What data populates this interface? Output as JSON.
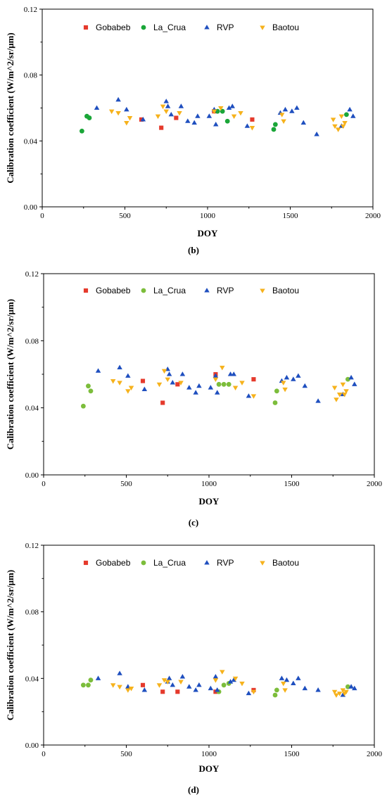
{
  "colors": {
    "Gobabeb": "#e53a2c",
    "La_Crua": "#1aa638",
    "La_Crua_light": "#7cbd3b",
    "RVP": "#1f4fbf",
    "Baotou": "#f6b21c"
  },
  "chart_data": [
    {
      "type": "scatter",
      "panel_label": "(b)",
      "xlabel": "DOY",
      "ylabel": "Calibration coefficient (W/m^2/sr/μm)",
      "xlim": [
        0,
        2000
      ],
      "ylim": [
        0,
        0.12
      ],
      "xticks": [
        "0",
        "500",
        "1000",
        "1500",
        "2000"
      ],
      "yticks": [
        "0.00",
        "0.04",
        "0.08",
        "0.12"
      ],
      "grid": false,
      "legend_position": "top",
      "series": [
        {
          "name": "Gobabeb",
          "marker": "square",
          "color_key": "Gobabeb",
          "x": [
            600,
            720,
            810,
            1040,
            1270
          ],
          "y": [
            0.053,
            0.048,
            0.054,
            0.058,
            0.053
          ]
        },
        {
          "name": "La_Crua",
          "marker": "circle",
          "color_key": "La_Crua",
          "x": [
            240,
            270,
            285,
            1060,
            1090,
            1120,
            1400,
            1410,
            1840
          ],
          "y": [
            0.046,
            0.055,
            0.054,
            0.058,
            0.058,
            0.052,
            0.047,
            0.05,
            0.056
          ]
        },
        {
          "name": "RVP",
          "marker": "triangle-up",
          "color_key": "RVP",
          "x": [
            330,
            460,
            510,
            610,
            750,
            760,
            780,
            840,
            880,
            920,
            940,
            1010,
            1040,
            1050,
            1130,
            1150,
            1240,
            1440,
            1470,
            1510,
            1540,
            1580,
            1660,
            1810,
            1860,
            1880
          ],
          "y": [
            0.06,
            0.065,
            0.059,
            0.053,
            0.064,
            0.061,
            0.056,
            0.061,
            0.052,
            0.051,
            0.055,
            0.055,
            0.059,
            0.05,
            0.06,
            0.061,
            0.049,
            0.057,
            0.059,
            0.058,
            0.06,
            0.051,
            0.044,
            0.049,
            0.059,
            0.055
          ]
        },
        {
          "name": "Baotou",
          "marker": "triangle-down",
          "color_key": "Baotou",
          "x": [
            420,
            460,
            510,
            530,
            700,
            730,
            750,
            830,
            1040,
            1080,
            1160,
            1200,
            1270,
            1450,
            1460,
            1760,
            1770,
            1790,
            1810,
            1820,
            1830
          ],
          "y": [
            0.058,
            0.057,
            0.051,
            0.054,
            0.055,
            0.061,
            0.058,
            0.057,
            0.058,
            0.06,
            0.055,
            0.057,
            0.048,
            0.056,
            0.052,
            0.053,
            0.049,
            0.047,
            0.055,
            0.049,
            0.051
          ]
        }
      ]
    },
    {
      "type": "scatter",
      "panel_label": "(c)",
      "xlabel": "DOY",
      "ylabel": "Calibration coefficient (W/m^2/sr/μm)",
      "xlim": [
        0,
        2000
      ],
      "ylim": [
        0,
        0.12
      ],
      "xticks": [
        "0",
        "500",
        "1000",
        "1500",
        "2000"
      ],
      "yticks": [
        "0.00",
        "0.04",
        "0.08",
        "0.12"
      ],
      "grid": false,
      "legend_position": "top",
      "series": [
        {
          "name": "Gobabeb",
          "marker": "square",
          "color_key": "Gobabeb",
          "x": [
            600,
            720,
            810,
            1040,
            1270
          ],
          "y": [
            0.056,
            0.043,
            0.054,
            0.06,
            0.057
          ]
        },
        {
          "name": "La_Crua",
          "marker": "circle",
          "color_key": "La_Crua_light",
          "x": [
            240,
            270,
            285,
            1060,
            1090,
            1120,
            1400,
            1410,
            1840
          ],
          "y": [
            0.041,
            0.053,
            0.05,
            0.054,
            0.054,
            0.054,
            0.043,
            0.05,
            0.057
          ]
        },
        {
          "name": "RVP",
          "marker": "triangle-up",
          "color_key": "RVP",
          "x": [
            330,
            460,
            510,
            610,
            750,
            760,
            780,
            840,
            880,
            920,
            940,
            1010,
            1040,
            1050,
            1130,
            1150,
            1240,
            1440,
            1470,
            1510,
            1540,
            1580,
            1660,
            1810,
            1860,
            1880
          ],
          "y": [
            0.062,
            0.064,
            0.059,
            0.051,
            0.063,
            0.06,
            0.055,
            0.06,
            0.052,
            0.049,
            0.053,
            0.052,
            0.059,
            0.049,
            0.06,
            0.06,
            0.047,
            0.056,
            0.058,
            0.057,
            0.059,
            0.053,
            0.044,
            0.048,
            0.058,
            0.054
          ]
        },
        {
          "name": "Baotou",
          "marker": "triangle-down",
          "color_key": "Baotou",
          "x": [
            420,
            460,
            510,
            530,
            700,
            730,
            750,
            830,
            1040,
            1080,
            1160,
            1200,
            1270,
            1450,
            1460,
            1760,
            1770,
            1790,
            1810,
            1820,
            1830
          ],
          "y": [
            0.056,
            0.055,
            0.05,
            0.052,
            0.054,
            0.062,
            0.057,
            0.055,
            0.057,
            0.064,
            0.052,
            0.055,
            0.047,
            0.055,
            0.051,
            0.052,
            0.045,
            0.048,
            0.054,
            0.048,
            0.05
          ]
        }
      ]
    },
    {
      "type": "scatter",
      "panel_label": "(d)",
      "xlabel": "DOY",
      "ylabel": "Calibration coefficient (W/m^2/sr/μm)",
      "xlim": [
        0,
        2000
      ],
      "ylim": [
        0,
        0.12
      ],
      "xticks": [
        "0",
        "500",
        "1000",
        "1500",
        "2000"
      ],
      "yticks": [
        "0.00",
        "0.04",
        "0.08",
        "0.12"
      ],
      "grid": false,
      "legend_position": "top",
      "series": [
        {
          "name": "Gobabeb",
          "marker": "square",
          "color_key": "Gobabeb",
          "x": [
            600,
            720,
            810,
            1040,
            1270
          ],
          "y": [
            0.036,
            0.032,
            0.032,
            0.032,
            0.033
          ]
        },
        {
          "name": "La_Crua",
          "marker": "circle",
          "color_key": "La_Crua_light",
          "x": [
            240,
            270,
            285,
            1060,
            1090,
            1120,
            1400,
            1410,
            1840
          ],
          "y": [
            0.036,
            0.036,
            0.039,
            0.032,
            0.036,
            0.037,
            0.03,
            0.033,
            0.035
          ]
        },
        {
          "name": "RVP",
          "marker": "triangle-up",
          "color_key": "RVP",
          "x": [
            330,
            460,
            510,
            610,
            750,
            760,
            780,
            840,
            880,
            920,
            940,
            1010,
            1040,
            1050,
            1130,
            1150,
            1240,
            1440,
            1470,
            1510,
            1540,
            1580,
            1660,
            1810,
            1860,
            1880
          ],
          "y": [
            0.04,
            0.043,
            0.035,
            0.033,
            0.038,
            0.04,
            0.036,
            0.041,
            0.035,
            0.033,
            0.036,
            0.034,
            0.041,
            0.033,
            0.038,
            0.039,
            0.031,
            0.04,
            0.039,
            0.037,
            0.04,
            0.034,
            0.033,
            0.03,
            0.035,
            0.034
          ]
        },
        {
          "name": "Baotou",
          "marker": "triangle-down",
          "color_key": "Baotou",
          "x": [
            420,
            460,
            510,
            530,
            700,
            730,
            750,
            830,
            1040,
            1080,
            1160,
            1200,
            1270,
            1450,
            1460,
            1760,
            1770,
            1790,
            1810,
            1820,
            1830
          ],
          "y": [
            0.036,
            0.035,
            0.033,
            0.034,
            0.036,
            0.039,
            0.038,
            0.038,
            0.039,
            0.044,
            0.04,
            0.037,
            0.032,
            0.037,
            0.033,
            0.032,
            0.03,
            0.031,
            0.033,
            0.031,
            0.032
          ]
        }
      ]
    }
  ]
}
